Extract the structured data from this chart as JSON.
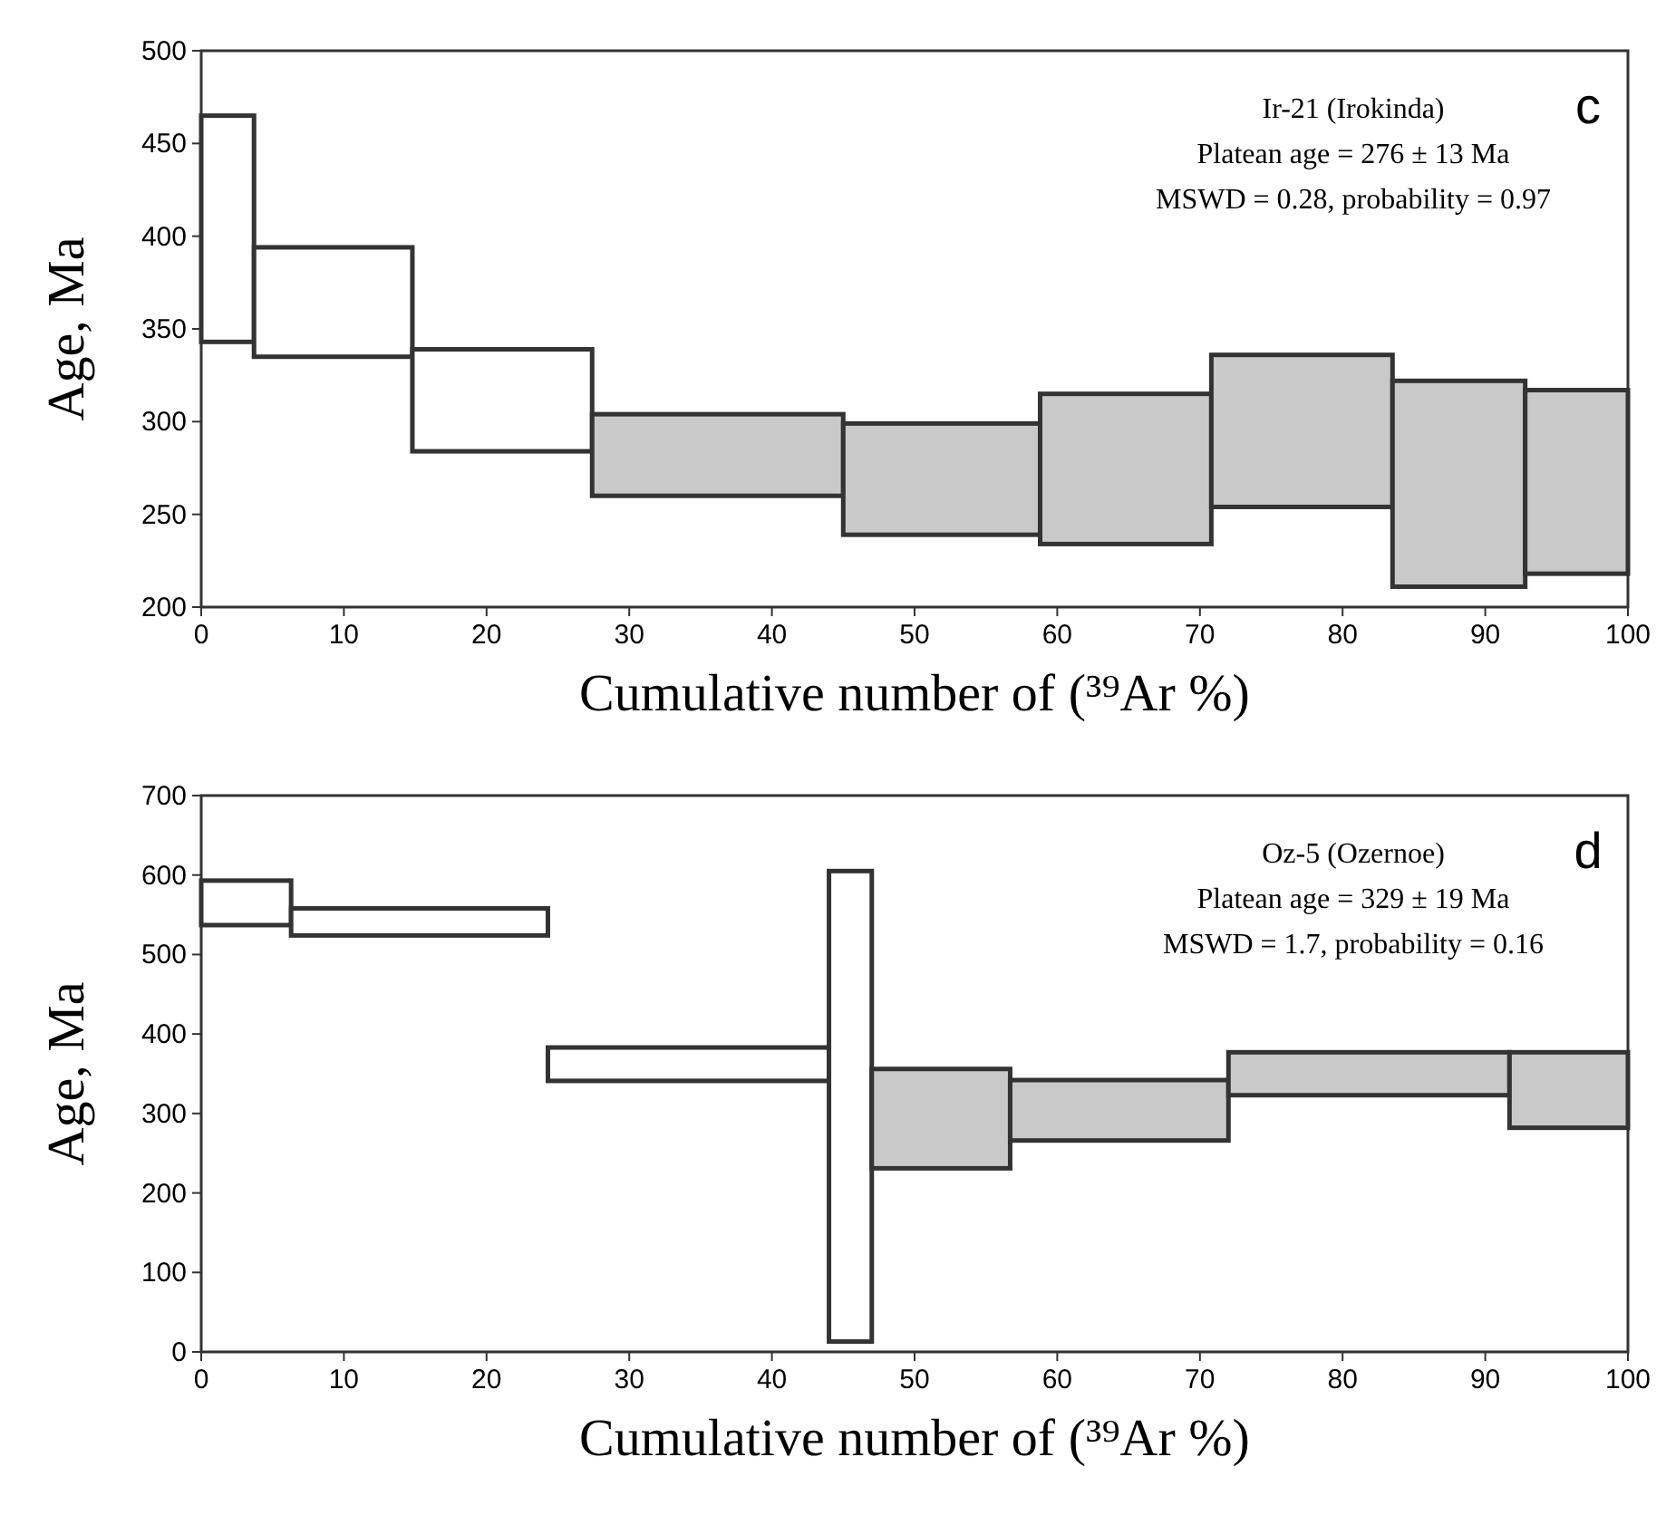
{
  "chart_data": [
    {
      "type": "histogram",
      "title": "c",
      "xlabel": "Cumulative number of (³⁹Ar %)",
      "ylabel": "Age, Ma",
      "annotations": [
        "Ir-21 (Irokinda)",
        "Platean age = 276 ± 13 Ma",
        "MSWD = 0.28, probability = 0.97"
      ],
      "bins": [
        0,
        3.7,
        14.8,
        27.4,
        45,
        58.8,
        70.8,
        83.5,
        92.8,
        100
      ],
      "values": [
        122,
        59,
        55,
        44,
        60,
        81,
        82,
        111,
        99
      ],
      "base": [
        343,
        335,
        284,
        260,
        239,
        234,
        254,
        211,
        218
      ],
      "colors": [
        "#ffffff",
        "#ffffff",
        "#ffffff",
        "#c8c9c8",
        "#c8c9c8",
        "#c8c9c8",
        "#c8c9c8",
        "#c8c9c8",
        "#c8c9c8"
      ],
      "xlim": [
        0,
        100
      ],
      "xticks": [
        0,
        10,
        20,
        30,
        40,
        50,
        60,
        70,
        80,
        90,
        100
      ],
      "ylim": [
        200,
        500
      ],
      "yticks": [
        200,
        250,
        300,
        350,
        400,
        450,
        500
      ]
    },
    {
      "type": "histogram",
      "title": "d",
      "xlabel": "Cumulative number of (³⁹Ar %)",
      "ylabel": "Age, Ma",
      "annotations": [
        "Oz-5 (Ozernoe)",
        "Platean age = 329 ± 19 Ma",
        "MSWD = 1.7, probability = 0.16"
      ],
      "bins": [
        0,
        6.3,
        24.3,
        44,
        47,
        56.7,
        72,
        91.7,
        100
      ],
      "values": [
        56,
        34,
        42,
        592,
        125,
        76,
        54,
        95
      ],
      "base": [
        537,
        524,
        341,
        13,
        231,
        266,
        323,
        282
      ],
      "colors": [
        "#ffffff",
        "#ffffff",
        "#ffffff",
        "#ffffff",
        "#c8c9c8",
        "#c8c9c8",
        "#c8c9c8",
        "#c8c9c8"
      ],
      "xlim": [
        0,
        100
      ],
      "xticks": [
        0,
        10,
        20,
        30,
        40,
        50,
        60,
        70,
        80,
        90,
        100
      ],
      "ylim": [
        0,
        700
      ],
      "yticks": [
        0,
        100,
        200,
        300,
        400,
        500,
        600,
        700
      ]
    }
  ]
}
